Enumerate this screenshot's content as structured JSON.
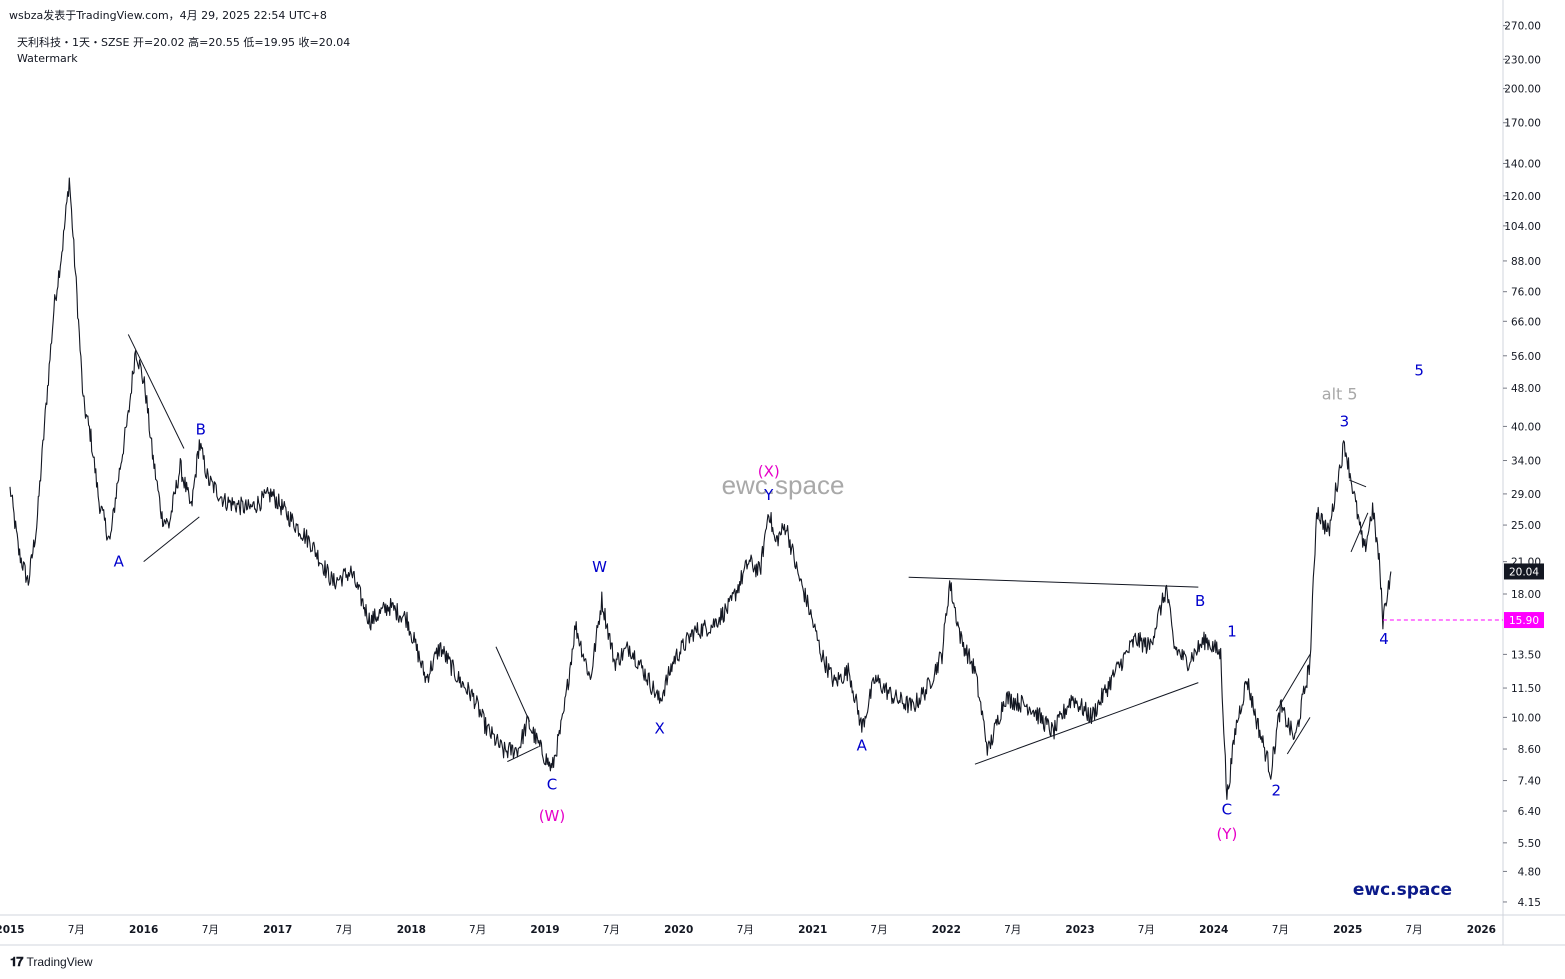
{
  "header": {
    "publish_line": "wsbza发表于TradingView.com，4月 29, 2025 22:54 UTC+8",
    "symbol_line": "天利科技・1天・SZSE  开=20.02  高=20.55  低=19.95  收=20.04",
    "watermark_label": "Watermark"
  },
  "footer": {
    "brand": "TradingView",
    "logo_icon": "tradingview-logo-icon"
  },
  "colors": {
    "price": "#131722",
    "wave_blue": "#0000cc",
    "wave_magenta": "#e600c8",
    "alt_gray": "#a8a8a8",
    "axis_text": "#131722",
    "dashed_level": "#ff00ff",
    "last_price_bg": "#131722",
    "level_bg": "#ff00ff"
  },
  "chart_data": {
    "type": "line",
    "scale": "log",
    "grid": false,
    "xlim": [
      "2015-01-01",
      "2026-03-01"
    ],
    "ylim": [
      3.9,
      280
    ],
    "x_ticks": [
      {
        "date": "2015-01-01",
        "label": "2015",
        "bold": true
      },
      {
        "date": "2015-07-01",
        "label": "7月",
        "bold": false
      },
      {
        "date": "2016-01-01",
        "label": "2016",
        "bold": true
      },
      {
        "date": "2016-07-01",
        "label": "7月",
        "bold": false
      },
      {
        "date": "2017-01-01",
        "label": "2017",
        "bold": true
      },
      {
        "date": "2017-07-01",
        "label": "7月",
        "bold": false
      },
      {
        "date": "2018-01-01",
        "label": "2018",
        "bold": true
      },
      {
        "date": "2018-07-01",
        "label": "7月",
        "bold": false
      },
      {
        "date": "2019-01-01",
        "label": "2019",
        "bold": true
      },
      {
        "date": "2019-07-01",
        "label": "7月",
        "bold": false
      },
      {
        "date": "2020-01-01",
        "label": "2020",
        "bold": true
      },
      {
        "date": "2020-07-01",
        "label": "7月",
        "bold": false
      },
      {
        "date": "2021-01-01",
        "label": "2021",
        "bold": true
      },
      {
        "date": "2021-07-01",
        "label": "7月",
        "bold": false
      },
      {
        "date": "2022-01-01",
        "label": "2022",
        "bold": true
      },
      {
        "date": "2022-07-01",
        "label": "7月",
        "bold": false
      },
      {
        "date": "2023-01-01",
        "label": "2023",
        "bold": true
      },
      {
        "date": "2023-07-01",
        "label": "7月",
        "bold": false
      },
      {
        "date": "2024-01-01",
        "label": "2024",
        "bold": true
      },
      {
        "date": "2024-07-01",
        "label": "7月",
        "bold": false
      },
      {
        "date": "2025-01-01",
        "label": "2025",
        "bold": true
      },
      {
        "date": "2025-07-01",
        "label": "7月",
        "bold": false
      },
      {
        "date": "2026-01-01",
        "label": "2026",
        "bold": true
      }
    ],
    "y_ticks": [
      {
        "v": 270,
        "label": "270.00"
      },
      {
        "v": 230,
        "label": "230.00"
      },
      {
        "v": 200,
        "label": "200.00"
      },
      {
        "v": 170,
        "label": "170.00"
      },
      {
        "v": 140,
        "label": "140.00"
      },
      {
        "v": 120,
        "label": "120.00"
      },
      {
        "v": 104,
        "label": "104.00"
      },
      {
        "v": 88,
        "label": "88.00"
      },
      {
        "v": 76,
        "label": "76.00"
      },
      {
        "v": 66,
        "label": "66.00"
      },
      {
        "v": 56,
        "label": "56.00"
      },
      {
        "v": 48,
        "label": "48.00"
      },
      {
        "v": 40,
        "label": "40.00"
      },
      {
        "v": 34,
        "label": "34.00"
      },
      {
        "v": 29,
        "label": "29.00"
      },
      {
        "v": 25,
        "label": "25.00"
      },
      {
        "v": 21,
        "label": "21.00"
      },
      {
        "v": 18,
        "label": "18.00"
      },
      {
        "v": 13.5,
        "label": "13.50"
      },
      {
        "v": 11.5,
        "label": "11.50"
      },
      {
        "v": 10,
        "label": "10.00"
      },
      {
        "v": 8.6,
        "label": "8.60"
      },
      {
        "v": 7.4,
        "label": "7.40"
      },
      {
        "v": 6.4,
        "label": "6.40"
      },
      {
        "v": 5.5,
        "label": "5.50"
      },
      {
        "v": 4.8,
        "label": "4.80"
      },
      {
        "v": 4.15,
        "label": "4.15"
      }
    ],
    "series": [
      {
        "line_color": "#131722",
        "points": [
          [
            "2015-01-01",
            30
          ],
          [
            "2015-01-25",
            22
          ],
          [
            "2015-02-20",
            19
          ],
          [
            "2015-03-15",
            25
          ],
          [
            "2015-04-05",
            40
          ],
          [
            "2015-05-01",
            70
          ],
          [
            "2015-05-25",
            95
          ],
          [
            "2015-06-12",
            130
          ],
          [
            "2015-06-20",
            105
          ],
          [
            "2015-07-05",
            70
          ],
          [
            "2015-07-20",
            45
          ],
          [
            "2015-08-10",
            38
          ],
          [
            "2015-09-01",
            28
          ],
          [
            "2015-10-01",
            23
          ],
          [
            "2015-10-20",
            30
          ],
          [
            "2015-11-20",
            42
          ],
          [
            "2015-12-10",
            58
          ],
          [
            "2016-01-05",
            48
          ],
          [
            "2016-01-25",
            35
          ],
          [
            "2016-02-20",
            26
          ],
          [
            "2016-03-10",
            25
          ],
          [
            "2016-04-10",
            33
          ],
          [
            "2016-05-10",
            27
          ],
          [
            "2016-06-01",
            37
          ],
          [
            "2016-06-25",
            31
          ],
          [
            "2016-08-10",
            28
          ],
          [
            "2016-10-15",
            27
          ],
          [
            "2016-12-15",
            29
          ],
          [
            "2017-02-01",
            26
          ],
          [
            "2017-04-01",
            23
          ],
          [
            "2017-06-01",
            19
          ],
          [
            "2017-07-20",
            20
          ],
          [
            "2017-09-10",
            15.8
          ],
          [
            "2017-11-01",
            17
          ],
          [
            "2017-12-20",
            16
          ],
          [
            "2018-02-10",
            12
          ],
          [
            "2018-03-20",
            14
          ],
          [
            "2018-05-10",
            12
          ],
          [
            "2018-06-20",
            11
          ],
          [
            "2018-07-25",
            9.5
          ],
          [
            "2018-09-10",
            8.5
          ],
          [
            "2018-10-20",
            8.6
          ],
          [
            "2018-11-15",
            9.8
          ],
          [
            "2018-12-20",
            8.6
          ],
          [
            "2019-01-20",
            7.8
          ],
          [
            "2019-02-20",
            10
          ],
          [
            "2019-03-25",
            15.5
          ],
          [
            "2019-05-05",
            12
          ],
          [
            "2019-06-05",
            17.5
          ],
          [
            "2019-07-10",
            13
          ],
          [
            "2019-08-20",
            14
          ],
          [
            "2019-10-10",
            12
          ],
          [
            "2019-11-10",
            10.8
          ],
          [
            "2019-12-20",
            13.2
          ],
          [
            "2020-02-10",
            15
          ],
          [
            "2020-04-01",
            15.5
          ],
          [
            "2020-05-20",
            17
          ],
          [
            "2020-07-10",
            21
          ],
          [
            "2020-08-10",
            20
          ],
          [
            "2020-09-03",
            27
          ],
          [
            "2020-09-20",
            23
          ],
          [
            "2020-10-20",
            25
          ],
          [
            "2020-11-20",
            20
          ],
          [
            "2020-12-20",
            17
          ],
          [
            "2021-01-25",
            13.5
          ],
          [
            "2021-03-01",
            11.8
          ],
          [
            "2021-04-10",
            12.5
          ],
          [
            "2021-05-15",
            9.5
          ],
          [
            "2021-06-20",
            12
          ],
          [
            "2021-08-10",
            11
          ],
          [
            "2021-10-01",
            10.5
          ],
          [
            "2021-11-10",
            11.5
          ],
          [
            "2021-12-20",
            13.5
          ],
          [
            "2022-01-10",
            19
          ],
          [
            "2022-02-10",
            14.5
          ],
          [
            "2022-03-20",
            12.5
          ],
          [
            "2022-04-25",
            8.5
          ],
          [
            "2022-06-10",
            11
          ],
          [
            "2022-08-20",
            10.5
          ],
          [
            "2022-10-20",
            9.3
          ],
          [
            "2022-12-10",
            11
          ],
          [
            "2023-02-01",
            10
          ],
          [
            "2023-04-10",
            12.5
          ],
          [
            "2023-06-01",
            14.5
          ],
          [
            "2023-07-10",
            14
          ],
          [
            "2023-08-25",
            18.5
          ],
          [
            "2023-09-15",
            14
          ],
          [
            "2023-10-20",
            13
          ],
          [
            "2023-12-10",
            14.5
          ],
          [
            "2024-01-20",
            13.5
          ],
          [
            "2024-02-06",
            6.8
          ],
          [
            "2024-03-01",
            9.5
          ],
          [
            "2024-04-01",
            12
          ],
          [
            "2024-04-25",
            10
          ],
          [
            "2024-06-05",
            7.7
          ],
          [
            "2024-07-01",
            10.5
          ],
          [
            "2024-08-10",
            9
          ],
          [
            "2024-09-20",
            13
          ],
          [
            "2024-10-08",
            27
          ],
          [
            "2024-11-10",
            24
          ],
          [
            "2024-12-01",
            30
          ],
          [
            "2024-12-23",
            37
          ],
          [
            "2025-01-25",
            27
          ],
          [
            "2025-02-15",
            22
          ],
          [
            "2025-03-10",
            27
          ],
          [
            "2025-03-28",
            21
          ],
          [
            "2025-04-07",
            15.9
          ],
          [
            "2025-04-18",
            18
          ],
          [
            "2025-04-29",
            20.04
          ]
        ]
      }
    ],
    "trendlines": [
      {
        "from": [
          "2015-11-20",
          62
        ],
        "to": [
          "2016-04-20",
          36
        ]
      },
      {
        "from": [
          "2016-01-01",
          21
        ],
        "to": [
          "2016-06-01",
          26
        ]
      },
      {
        "from": [
          "2018-08-20",
          14
        ],
        "to": [
          "2018-11-20",
          9.8
        ]
      },
      {
        "from": [
          "2018-09-20",
          8.1
        ],
        "to": [
          "2018-12-15",
          8.7
        ]
      },
      {
        "from": [
          "2021-09-20",
          19.5
        ],
        "to": [
          "2023-11-20",
          18.6
        ]
      },
      {
        "from": [
          "2022-03-20",
          8.0
        ],
        "to": [
          "2023-11-20",
          11.8
        ]
      },
      {
        "from": [
          "2024-06-20",
          10.3
        ],
        "to": [
          "2024-09-20",
          13.5
        ]
      },
      {
        "from": [
          "2024-07-20",
          8.4
        ],
        "to": [
          "2024-09-20",
          10.0
        ]
      },
      {
        "from": [
          "2025-01-05",
          31
        ],
        "to": [
          "2025-02-20",
          30
        ]
      },
      {
        "from": [
          "2025-01-10",
          22
        ],
        "to": [
          "2025-02-25",
          26.5
        ]
      }
    ],
    "annotations": [
      {
        "text": "A",
        "date": "2015-10-25",
        "price": 20.5,
        "color": "wave_blue"
      },
      {
        "text": "B",
        "date": "2016-06-05",
        "price": 38.5,
        "color": "wave_blue"
      },
      {
        "text": "C",
        "date": "2019-01-20",
        "price": 7.1,
        "color": "wave_blue"
      },
      {
        "text": "(W)",
        "date": "2019-01-20",
        "price": 6.1,
        "color": "wave_magenta"
      },
      {
        "text": "W",
        "date": "2019-05-30",
        "price": 20.0,
        "color": "wave_blue"
      },
      {
        "text": "X",
        "date": "2019-11-10",
        "price": 9.25,
        "color": "wave_blue"
      },
      {
        "text": "Y",
        "date": "2020-09-03",
        "price": 28.2,
        "color": "wave_blue"
      },
      {
        "text": "(X)",
        "date": "2020-09-03",
        "price": 31.5,
        "color": "wave_magenta"
      },
      {
        "text": "A",
        "date": "2021-05-15",
        "price": 8.55,
        "color": "wave_blue"
      },
      {
        "text": "B",
        "date": "2023-11-25",
        "price": 17.0,
        "color": "wave_blue"
      },
      {
        "text": "1",
        "date": "2024-02-20",
        "price": 14.7,
        "color": "wave_blue"
      },
      {
        "text": "C",
        "date": "2024-02-06",
        "price": 6.3,
        "color": "wave_blue"
      },
      {
        "text": "(Y)",
        "date": "2024-02-06",
        "price": 5.6,
        "color": "wave_magenta"
      },
      {
        "text": "2",
        "date": "2024-06-20",
        "price": 6.9,
        "color": "wave_blue"
      },
      {
        "text": "3",
        "date": "2024-12-23",
        "price": 40.0,
        "color": "wave_blue"
      },
      {
        "text": "alt 5",
        "date": "2024-12-10",
        "price": 45.5,
        "color": "alt_gray"
      },
      {
        "text": "4",
        "date": "2025-04-10",
        "price": 14.2,
        "color": "wave_blue"
      },
      {
        "text": "5",
        "date": "2025-07-15",
        "price": 51.0,
        "color": "wave_blue"
      }
    ],
    "watermark_center": "ewc.space",
    "brand_label": "ewc.space",
    "price_labels": [
      {
        "value": 20.04,
        "text": "20.04",
        "bg": "last_price_bg"
      },
      {
        "value": 15.9,
        "text": "15.90",
        "bg": "level_bg",
        "dashed_from": "2025-04-07"
      }
    ]
  }
}
